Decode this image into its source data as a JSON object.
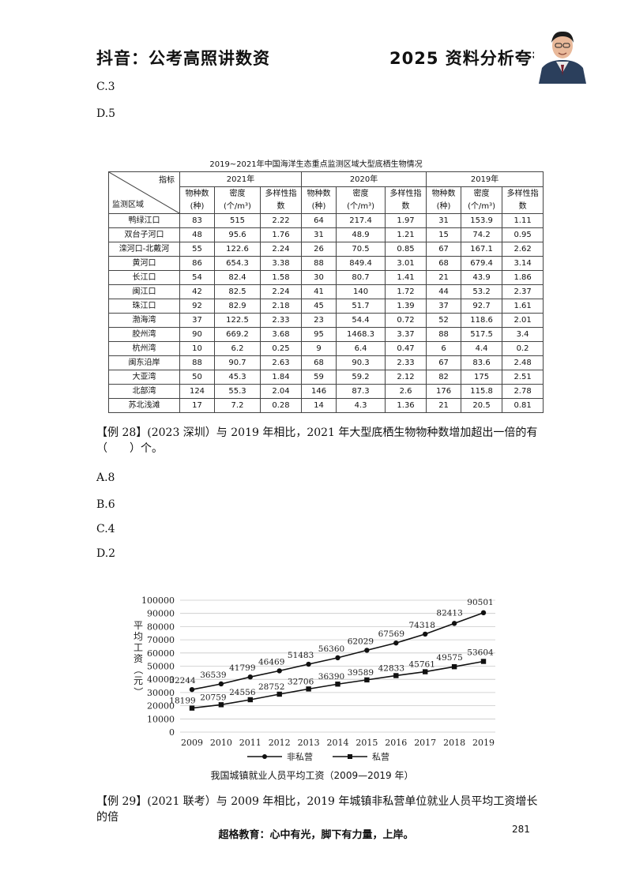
{
  "header": {
    "left": "抖音：公考高照讲数资",
    "right": "2025 资料分析夸夸刷"
  },
  "prev_options": [
    "C.3",
    "D.5"
  ],
  "table": {
    "title": "2019~2021年中国海洋生态重点监测区域大型底栖生物情况",
    "corner_top": "指标",
    "corner_bottom": "监测区域",
    "years": [
      "2021年",
      "2020年",
      "2019年"
    ],
    "sub_headers": [
      [
        "物种数",
        "(种)"
      ],
      [
        "密度",
        "(个/m³)"
      ],
      [
        "多样性指",
        "数"
      ],
      [
        "物种数",
        "(种)"
      ],
      [
        "密度",
        "(个/m³)"
      ],
      [
        "多样性指",
        "数"
      ],
      [
        "物种数",
        "(种)"
      ],
      [
        "密度",
        "(个/m³)"
      ],
      [
        "多样性指",
        "数"
      ]
    ],
    "rows": [
      [
        "鸭绿江口",
        "83",
        "515",
        "2.22",
        "64",
        "217.4",
        "1.97",
        "31",
        "153.9",
        "1.11"
      ],
      [
        "双台子河口",
        "48",
        "95.6",
        "1.76",
        "31",
        "48.9",
        "1.21",
        "15",
        "74.2",
        "0.95"
      ],
      [
        "滦河口-北戴河",
        "55",
        "122.6",
        "2.24",
        "26",
        "70.5",
        "0.85",
        "67",
        "167.1",
        "2.62"
      ],
      [
        "黄河口",
        "86",
        "654.3",
        "3.38",
        "88",
        "849.4",
        "3.01",
        "68",
        "679.4",
        "3.14"
      ],
      [
        "长江口",
        "54",
        "82.4",
        "1.58",
        "30",
        "80.7",
        "1.41",
        "21",
        "43.9",
        "1.86"
      ],
      [
        "闽江口",
        "42",
        "82.5",
        "2.24",
        "41",
        "140",
        "1.72",
        "44",
        "53.2",
        "2.37"
      ],
      [
        "珠江口",
        "92",
        "82.9",
        "2.18",
        "45",
        "51.7",
        "1.39",
        "37",
        "92.7",
        "1.61"
      ],
      [
        "渤海湾",
        "37",
        "122.5",
        "2.33",
        "23",
        "54.4",
        "0.72",
        "52",
        "118.6",
        "2.01"
      ],
      [
        "胶州湾",
        "90",
        "669.2",
        "3.68",
        "95",
        "1468.3",
        "3.37",
        "88",
        "517.5",
        "3.4"
      ],
      [
        "杭州湾",
        "10",
        "6.2",
        "0.25",
        "9",
        "6.4",
        "0.47",
        "6",
        "4.4",
        "0.2"
      ],
      [
        "闽东沿岸",
        "88",
        "90.7",
        "2.63",
        "68",
        "90.3",
        "2.33",
        "67",
        "83.6",
        "2.48"
      ],
      [
        "大亚湾",
        "50",
        "45.3",
        "1.84",
        "59",
        "59.2",
        "2.12",
        "82",
        "175",
        "2.51"
      ],
      [
        "北部湾",
        "124",
        "55.3",
        "2.04",
        "146",
        "87.3",
        "2.6",
        "176",
        "115.8",
        "2.78"
      ],
      [
        "苏北浅滩",
        "17",
        "7.2",
        "0.28",
        "14",
        "4.3",
        "1.36",
        "21",
        "20.5",
        "0.81"
      ]
    ]
  },
  "q28": {
    "text": "【例 28】(2023 深圳）与 2019 年相比，2021 年大型底栖生物物种数增加超出一倍的有（　　）个。",
    "options": [
      "A.8",
      "B.6",
      "C.4",
      "D.2"
    ]
  },
  "chart_data": {
    "type": "line",
    "title": "我国城镇就业人员平均工资（2009—2019 年）",
    "ylabel": "平均工资（元）",
    "x": [
      "2009",
      "2010",
      "2011",
      "2012",
      "2013",
      "2014",
      "2015",
      "2016",
      "2017",
      "2018",
      "2019"
    ],
    "ylim": [
      0,
      100000
    ],
    "yticks": [
      "0",
      "10000",
      "20000",
      "30000",
      "40000",
      "50000",
      "60000",
      "70000",
      "80000",
      "90000",
      "100000"
    ],
    "grid": true,
    "legend": "bottom",
    "series": [
      {
        "name": "非私营",
        "marker": "circle",
        "values": [
          32244,
          36539,
          41799,
          46469,
          51483,
          56360,
          62029,
          67569,
          74318,
          82413,
          90501
        ]
      },
      {
        "name": "私营",
        "marker": "square",
        "values": [
          18199,
          20759,
          24556,
          28752,
          32706,
          36390,
          39589,
          42833,
          45761,
          49575,
          53604
        ]
      }
    ]
  },
  "q29": {
    "text": "【例 29】(2021 联考）与 2009 年相比，2019 年城镇非私营单位就业人员平均工资增长的倍"
  },
  "footer": {
    "slogan": "超格教育：心中有光，脚下有力量，上岸。",
    "page": "281"
  }
}
